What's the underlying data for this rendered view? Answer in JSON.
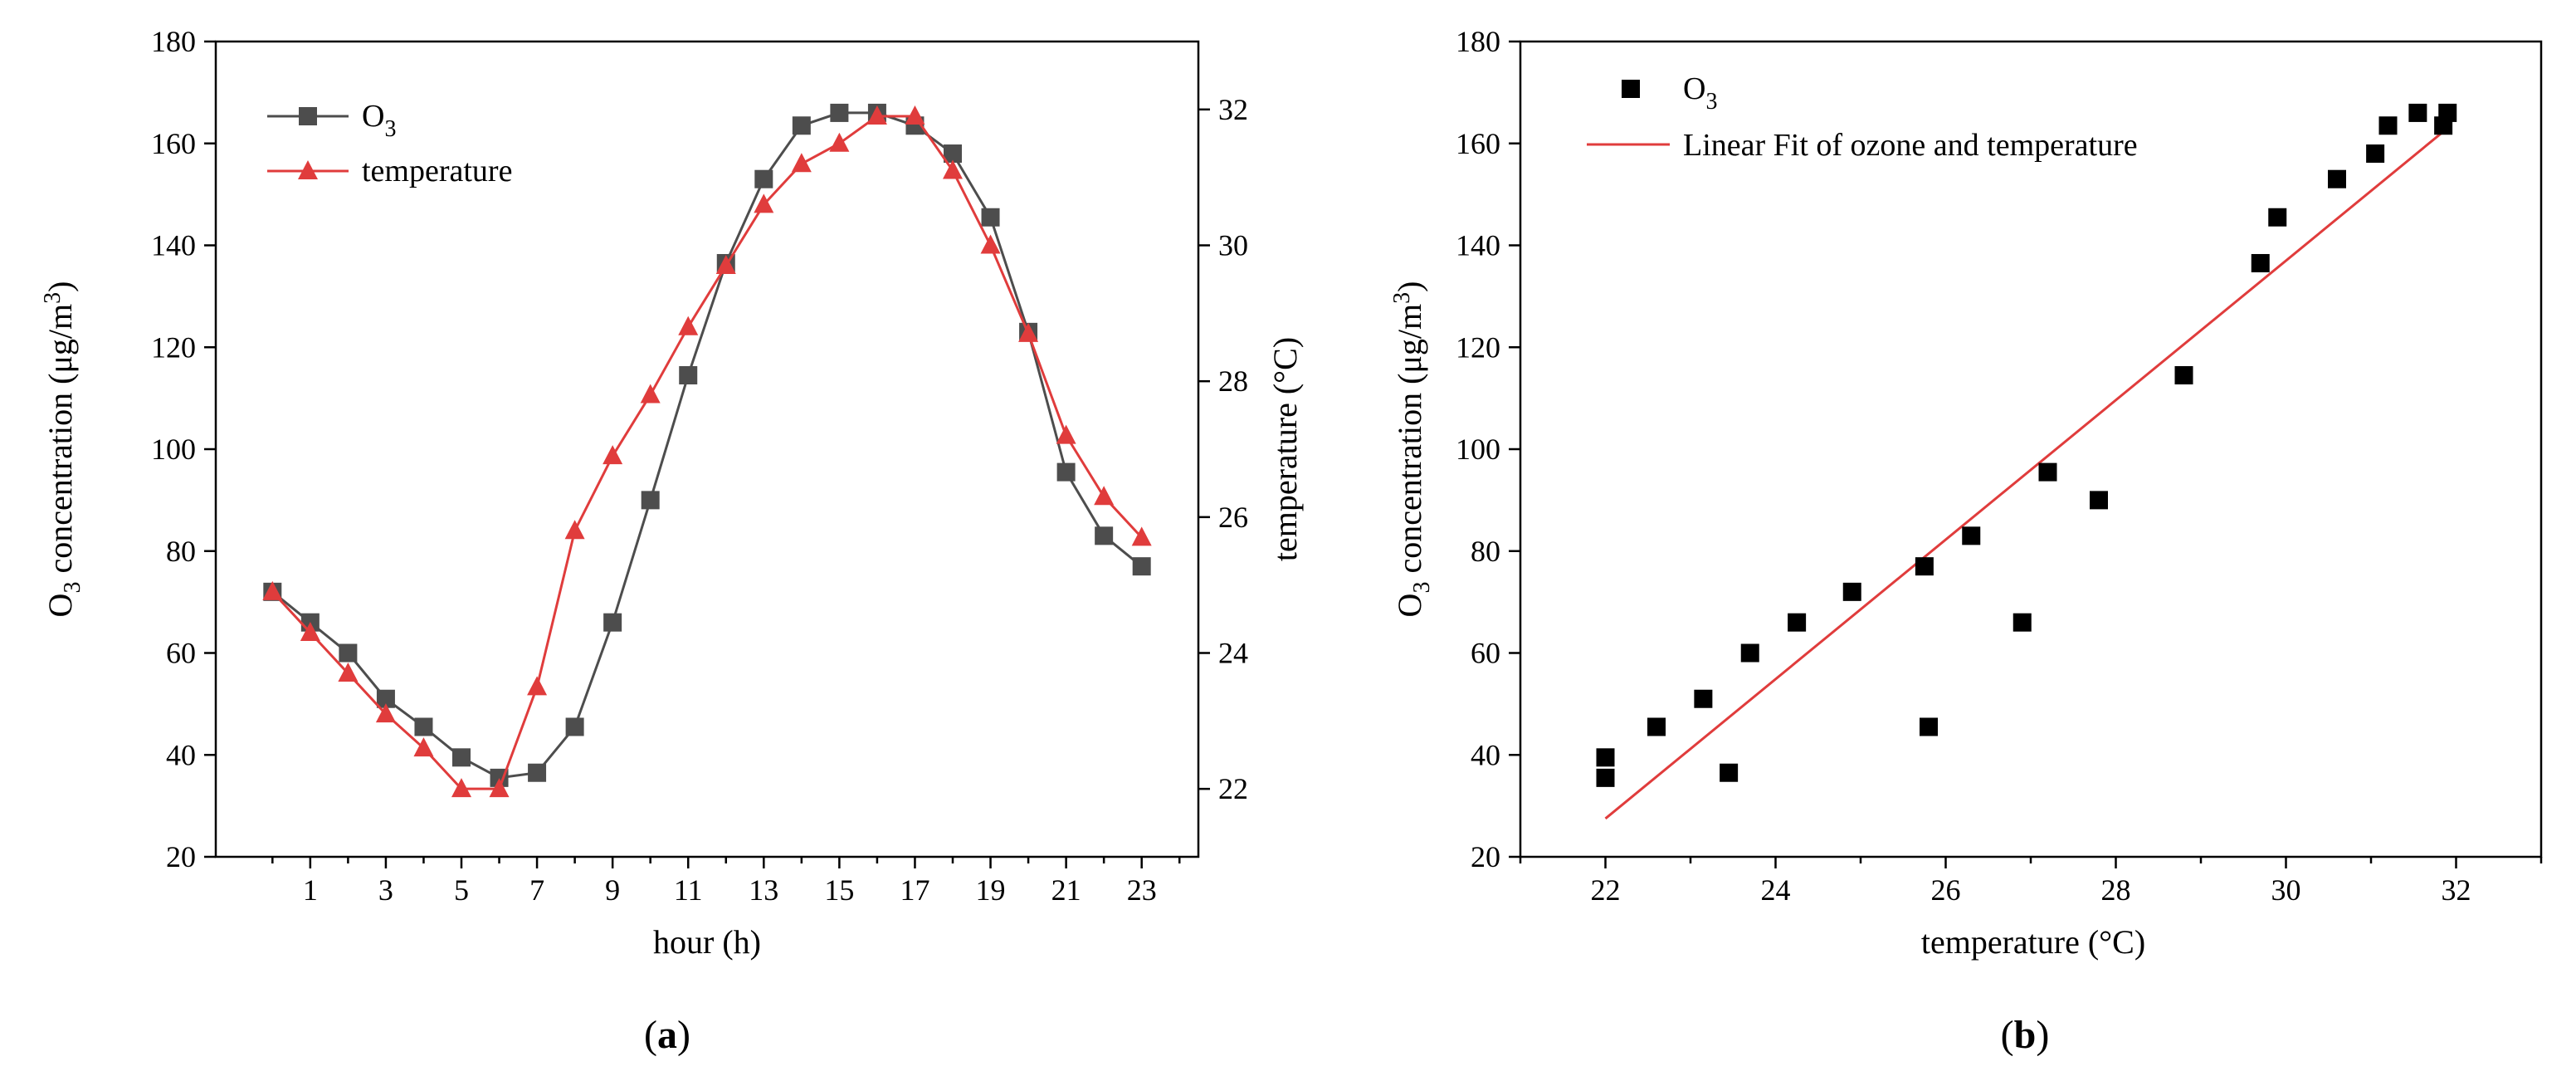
{
  "chart_data": [
    {
      "type": "line",
      "panel_label": "a",
      "xlabel": "hour (h)",
      "ylabel": {
        "prefix": "O",
        "sub": "3",
        "mid": " concentration (μg/m",
        "sup": "3",
        "suffix": ")"
      },
      "y2label": "temperature (°C)",
      "xlim": [
        -1.5,
        24.5
      ],
      "ylim": [
        20,
        180
      ],
      "y2lim": [
        21.0,
        33.0
      ],
      "xticks": [
        1,
        3,
        5,
        7,
        9,
        11,
        13,
        15,
        17,
        19,
        21,
        23
      ],
      "yticks": [
        20,
        40,
        60,
        80,
        100,
        120,
        140,
        160,
        180
      ],
      "y2ticks": [
        22,
        24,
        26,
        28,
        30,
        32
      ],
      "legend": {
        "position": "top-left"
      },
      "series": [
        {
          "name": "O3",
          "name_base": "O",
          "name_sub": "3",
          "axis": "left",
          "color": "#4d4d4d",
          "marker": "square",
          "x": [
            0,
            1,
            2,
            3,
            4,
            5,
            6,
            7,
            8,
            9,
            10,
            11,
            12,
            13,
            14,
            15,
            16,
            17,
            18,
            19,
            20,
            21,
            22,
            23
          ],
          "values": [
            72,
            66,
            60,
            51,
            45.5,
            39.5,
            35.5,
            36.5,
            45.5,
            66,
            90,
            114.5,
            136.5,
            153,
            163.5,
            166,
            166,
            163.5,
            158,
            145.5,
            123,
            95.5,
            83,
            77
          ]
        },
        {
          "name": "temperature",
          "axis": "right",
          "color": "#e03c3c",
          "marker": "triangle",
          "x": [
            0,
            1,
            2,
            3,
            4,
            5,
            6,
            7,
            8,
            9,
            10,
            11,
            12,
            13,
            14,
            15,
            16,
            17,
            18,
            19,
            20,
            21,
            22,
            23
          ],
          "values": [
            24.9,
            24.3,
            23.7,
            23.1,
            22.6,
            22.0,
            22.0,
            23.5,
            25.8,
            26.9,
            27.8,
            28.8,
            29.7,
            30.6,
            31.2,
            31.5,
            31.9,
            31.9,
            31.1,
            30.0,
            28.7,
            27.2,
            26.3,
            25.7
          ]
        }
      ]
    },
    {
      "type": "scatter",
      "panel_label": "b",
      "xlabel": "temperature (°C)",
      "ylabel": {
        "prefix": "O",
        "sub": "3",
        "mid": " concentration (μg/m",
        "sup": "3",
        "suffix": ")"
      },
      "xlim": [
        21.0,
        33.0
      ],
      "ylim": [
        20,
        180
      ],
      "xticks": [
        22,
        24,
        26,
        28,
        30,
        32
      ],
      "yticks": [
        20,
        40,
        60,
        80,
        100,
        120,
        140,
        160,
        180
      ],
      "legend": {
        "position": "top-left"
      },
      "series": [
        {
          "name": "O3",
          "name_base": "O",
          "name_sub": "3",
          "color": "#000000",
          "marker": "square",
          "x": [
            22.0,
            22.0,
            22.6,
            23.15,
            23.45,
            23.7,
            24.25,
            24.9,
            25.75,
            25.8,
            26.3,
            26.9,
            27.2,
            27.8,
            28.8,
            29.7,
            29.9,
            30.6,
            31.05,
            31.2,
            31.55,
            31.85,
            31.9
          ],
          "values": [
            39.5,
            35.5,
            45.5,
            51,
            36.5,
            60,
            66,
            72,
            77,
            45.5,
            83,
            66,
            95.5,
            90,
            114.5,
            136.5,
            145.5,
            153,
            158,
            163.5,
            166,
            163.5,
            166
          ]
        }
      ],
      "fit": {
        "name": "Linear Fit of ozone and temperature",
        "color": "#e03c3c",
        "x": [
          22.0,
          31.9
        ],
        "values": [
          27.5,
          163.0
        ]
      }
    }
  ]
}
